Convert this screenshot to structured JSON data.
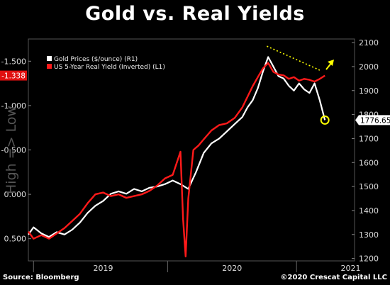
{
  "title": "Gold vs. Real Yields",
  "source": "Source: Bloomberg",
  "copyright": "©2020 Crescat Capital LLC",
  "chart_data": {
    "type": "line",
    "title": "Gold vs. Real Yields",
    "y_left_label": "High => Low",
    "y_left_ticks": [
      "-1.500",
      "-1.000",
      "-0.500",
      "0.000",
      "0.500"
    ],
    "y_left_tick_values": [
      -1.5,
      -1.0,
      -0.5,
      0.0,
      0.5
    ],
    "y_left_ylim": [
      0.75,
      -1.75
    ],
    "y_right_ticks": [
      "2100",
      "2000",
      "1900",
      "1800",
      "1700",
      "1600",
      "1500",
      "1400",
      "1300",
      "1200"
    ],
    "y_right_tick_values": [
      2100,
      2000,
      1900,
      1800,
      1700,
      1600,
      1500,
      1400,
      1300,
      1200
    ],
    "y_right_ylim": [
      1190,
      2115
    ],
    "x_labels": [
      "2019",
      "2020",
      "2021"
    ],
    "x_label_positions": [
      2019.0,
      2020.0,
      2020.92
    ],
    "x_dividers": [
      2018.46,
      2019.5,
      2020.5
    ],
    "xlim": [
      2018.42,
      2020.95
    ],
    "legend": [
      {
        "label": "Gold Prices ($/ounce) (R1)",
        "color": "#ffffff"
      },
      {
        "label": "US 5-Year Real Yield (Inverted) (L1)",
        "color": "#ff1a1a"
      }
    ],
    "last_value_left": "-1.338",
    "last_value_right": "1776.65",
    "series": [
      {
        "name": "Gold Prices ($/ounce) (R1)",
        "axis": "right",
        "color": "#ffffff",
        "x": [
          2018.42,
          2018.46,
          2018.52,
          2018.58,
          2018.64,
          2018.7,
          2018.76,
          2018.82,
          2018.88,
          2018.94,
          2019.0,
          2019.06,
          2019.12,
          2019.18,
          2019.24,
          2019.3,
          2019.36,
          2019.42,
          2019.48,
          2019.54,
          2019.6,
          2019.66,
          2019.72,
          2019.78,
          2019.84,
          2019.9,
          2019.96,
          2020.02,
          2020.08,
          2020.12,
          2020.16,
          2020.2,
          2020.24,
          2020.28,
          2020.32,
          2020.36,
          2020.4,
          2020.44,
          2020.48,
          2020.52,
          2020.56,
          2020.6,
          2020.64,
          2020.68,
          2020.72
        ],
        "y": [
          1300,
          1330,
          1305,
          1290,
          1310,
          1300,
          1320,
          1350,
          1390,
          1420,
          1440,
          1470,
          1480,
          1470,
          1490,
          1480,
          1495,
          1500,
          1510,
          1525,
          1510,
          1490,
          1560,
          1640,
          1680,
          1700,
          1730,
          1760,
          1790,
          1830,
          1860,
          1910,
          1980,
          2040,
          2000,
          1960,
          1950,
          1920,
          1900,
          1930,
          1905,
          1890,
          1930,
          1860,
          1777
        ]
      },
      {
        "name": "US 5-Year Real Yield (Inverted) (L1)",
        "axis": "left",
        "color": "#ff1a1a",
        "x": [
          2018.42,
          2018.46,
          2018.52,
          2018.58,
          2018.64,
          2018.7,
          2018.76,
          2018.82,
          2018.88,
          2018.94,
          2019.0,
          2019.06,
          2019.12,
          2019.18,
          2019.24,
          2019.3,
          2019.36,
          2019.42,
          2019.48,
          2019.54,
          2019.6,
          2019.62,
          2019.64,
          2019.66,
          2019.7,
          2019.74,
          2019.78,
          2019.84,
          2019.9,
          2019.96,
          2020.02,
          2020.08,
          2020.12,
          2020.16,
          2020.2,
          2020.24,
          2020.28,
          2020.32,
          2020.36,
          2020.4,
          2020.44,
          2020.48,
          2020.52,
          2020.56,
          2020.6,
          2020.64,
          2020.68,
          2020.72
        ],
        "y": [
          0.42,
          0.5,
          0.46,
          0.5,
          0.44,
          0.38,
          0.3,
          0.22,
          0.1,
          0.0,
          -0.02,
          0.02,
          0.0,
          0.04,
          0.02,
          0.0,
          -0.04,
          -0.1,
          -0.18,
          -0.22,
          -0.48,
          0.28,
          0.7,
          0.05,
          -0.5,
          -0.55,
          -0.62,
          -0.72,
          -0.78,
          -0.8,
          -0.86,
          -0.98,
          -1.1,
          -1.22,
          -1.32,
          -1.42,
          -1.48,
          -1.38,
          -1.35,
          -1.34,
          -1.3,
          -1.32,
          -1.28,
          -1.3,
          -1.29,
          -1.27,
          -1.3,
          -1.338
        ]
      }
    ],
    "annotations": [
      {
        "type": "dotted-trendline",
        "color": "#ffff00",
        "x": [
          2020.27,
          2020.68
        ],
        "y_right": [
          2085,
          1985
        ]
      },
      {
        "type": "arrow",
        "color": "#ffff00",
        "direction": "up-right"
      },
      {
        "type": "circle",
        "color": "#ffff00",
        "x": 2020.72,
        "y_right": 1777
      }
    ],
    "grid": false,
    "legend_placement": "top-left"
  }
}
